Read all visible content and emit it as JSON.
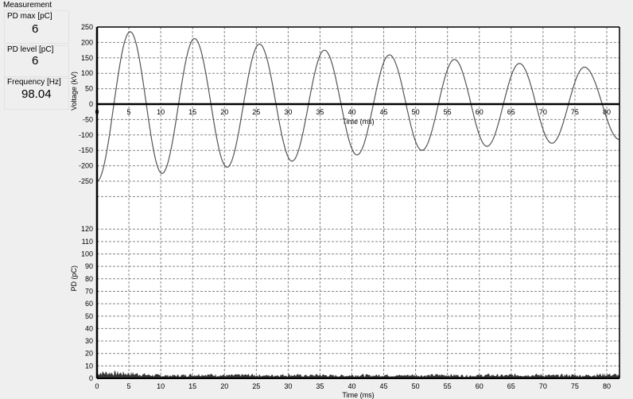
{
  "measurement": {
    "title": "Measurement",
    "pd_max_label": "PD max [pC]",
    "pd_max_value": "6",
    "pd_level_label": "PD level [pC]",
    "pd_level_value": "6",
    "frequency_label": "Frequency [Hz]",
    "frequency_value": "98.04"
  },
  "chart_data": [
    {
      "type": "line",
      "xlabel": "Time (ms)",
      "ylabel": "Voltage (kV)",
      "xlim": [
        0,
        82
      ],
      "ylim": [
        -250,
        250
      ],
      "xticks": [
        0,
        5,
        10,
        15,
        20,
        25,
        30,
        35,
        40,
        45,
        50,
        55,
        60,
        65,
        70,
        75,
        80
      ],
      "yticks": [
        250,
        200,
        150,
        100,
        50,
        0,
        -50,
        -100,
        -150,
        -200,
        -250
      ],
      "grid": true,
      "series": [
        {
          "extrema": [
            [
              0,
              -250
            ],
            [
              5.2,
              235
            ],
            [
              10.2,
              -225
            ],
            [
              15.3,
              213
            ],
            [
              20.4,
              -205
            ],
            [
              25.5,
              195
            ],
            [
              30.6,
              -185
            ],
            [
              35.7,
              175
            ],
            [
              40.8,
              -165
            ],
            [
              45.9,
              160
            ],
            [
              51,
              -150
            ],
            [
              56.1,
              145
            ],
            [
              61.2,
              -137
            ],
            [
              66.3,
              132
            ],
            [
              71.4,
              -127
            ],
            [
              76.5,
              120
            ],
            [
              82,
              -115
            ]
          ]
        }
      ]
    },
    {
      "type": "area",
      "xlabel": "Time (ms)",
      "ylabel": "PD (pC)",
      "xlim": [
        0,
        82
      ],
      "ylim": [
        0,
        120
      ],
      "xticks": [
        0,
        5,
        10,
        15,
        20,
        25,
        30,
        35,
        40,
        45,
        50,
        55,
        60,
        65,
        70,
        75,
        80
      ],
      "yticks": [
        120,
        110,
        100,
        90,
        80,
        70,
        60,
        50,
        40,
        30,
        20,
        10,
        0
      ],
      "grid": true,
      "series": [
        {
          "values": [
            5,
            5,
            4.5,
            4,
            3,
            2.5,
            2.5,
            3,
            3.5,
            3,
            2.5,
            3,
            3,
            2.5,
            3,
            3,
            2.5,
            3,
            2.5,
            2.5,
            3,
            2.5,
            3,
            2.5,
            3,
            2.5,
            3,
            3,
            2.5,
            2.5,
            3,
            2.5,
            3,
            3,
            3,
            2.5,
            3,
            2.5,
            3,
            3.5,
            3
          ]
        }
      ]
    }
  ]
}
